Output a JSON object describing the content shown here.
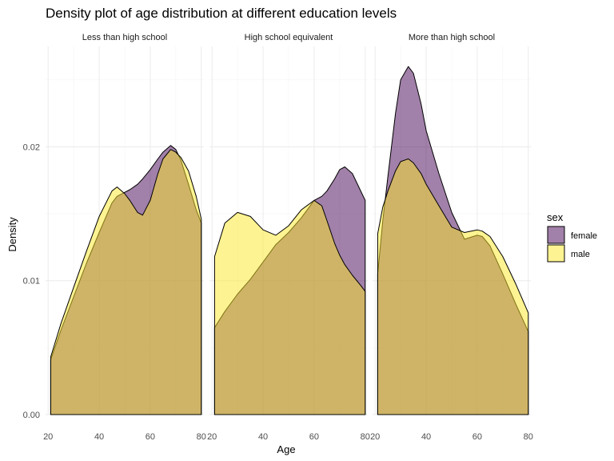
{
  "chart_data": {
    "type": "area",
    "title": "Density plot of age distribution at different education levels",
    "xlabel": "Age",
    "ylabel": "Density",
    "xlim": [
      19,
      81
    ],
    "ylim": [
      0,
      0.0275
    ],
    "x_ticks": [
      "20",
      "40",
      "60",
      "80"
    ],
    "y_ticks": [
      "0.00",
      "0.01",
      "0.02"
    ],
    "legend": {
      "title": "sex",
      "placement": "right",
      "entries": [
        {
          "label": "female",
          "color": "#440154"
        },
        {
          "label": "male",
          "color": "#FDE725"
        }
      ]
    },
    "fill_opacity": 0.5,
    "grid": true,
    "panels": [
      {
        "label": "Less than high school",
        "x": [
          21,
          25,
          30,
          35,
          40,
          45,
          47,
          50,
          52,
          55,
          57,
          60,
          63,
          65,
          68,
          70,
          72,
          75,
          78,
          80
        ],
        "series": [
          {
            "name": "female",
            "values": [
              0.0041,
              0.0063,
              0.0088,
              0.0113,
              0.0136,
              0.0158,
              0.0163,
              0.0166,
              0.0168,
              0.0172,
              0.0176,
              0.0183,
              0.0191,
              0.0196,
              0.0201,
              0.0198,
              0.019,
              0.0172,
              0.0153,
              0.0143
            ]
          },
          {
            "name": "male",
            "values": [
              0.0043,
              0.0068,
              0.0095,
              0.0122,
              0.0148,
              0.0167,
              0.017,
              0.0165,
              0.016,
              0.0151,
              0.0149,
              0.016,
              0.018,
              0.0191,
              0.0198,
              0.0196,
              0.0192,
              0.0182,
              0.0163,
              0.0146
            ]
          }
        ]
      },
      {
        "label": "High school equivalent",
        "x": [
          21,
          25,
          30,
          35,
          40,
          45,
          50,
          55,
          60,
          63,
          65,
          68,
          70,
          72,
          75,
          78,
          80
        ],
        "series": [
          {
            "name": "female",
            "values": [
              0.0065,
              0.0077,
              0.009,
              0.0101,
              0.0114,
              0.0127,
              0.0136,
              0.0147,
              0.016,
              0.0163,
              0.0167,
              0.0176,
              0.0183,
              0.0185,
              0.018,
              0.0168,
              0.016
            ]
          },
          {
            "name": "male",
            "values": [
              0.0118,
              0.0143,
              0.0151,
              0.0148,
              0.0138,
              0.0134,
              0.0141,
              0.0153,
              0.016,
              0.0156,
              0.0145,
              0.0128,
              0.0119,
              0.0112,
              0.0104,
              0.0097,
              0.0092
            ]
          }
        ]
      },
      {
        "label": "More than high school",
        "x": [
          21,
          23,
          25,
          28,
          30,
          33,
          35,
          38,
          40,
          45,
          50,
          55,
          60,
          62,
          65,
          70,
          75,
          80
        ],
        "series": [
          {
            "name": "female",
            "values": [
              0.0105,
              0.0145,
              0.0178,
              0.0225,
              0.025,
              0.026,
              0.0255,
              0.0232,
              0.0212,
              0.018,
              0.0151,
              0.0131,
              0.0134,
              0.0133,
              0.0126,
              0.0105,
              0.0083,
              0.0062
            ]
          },
          {
            "name": "male",
            "values": [
              0.0135,
              0.0155,
              0.0167,
              0.0182,
              0.0189,
              0.0191,
              0.0188,
              0.018,
              0.0172,
              0.0156,
              0.014,
              0.0136,
              0.0138,
              0.0137,
              0.0133,
              0.0118,
              0.0098,
              0.0076
            ]
          }
        ]
      }
    ]
  }
}
